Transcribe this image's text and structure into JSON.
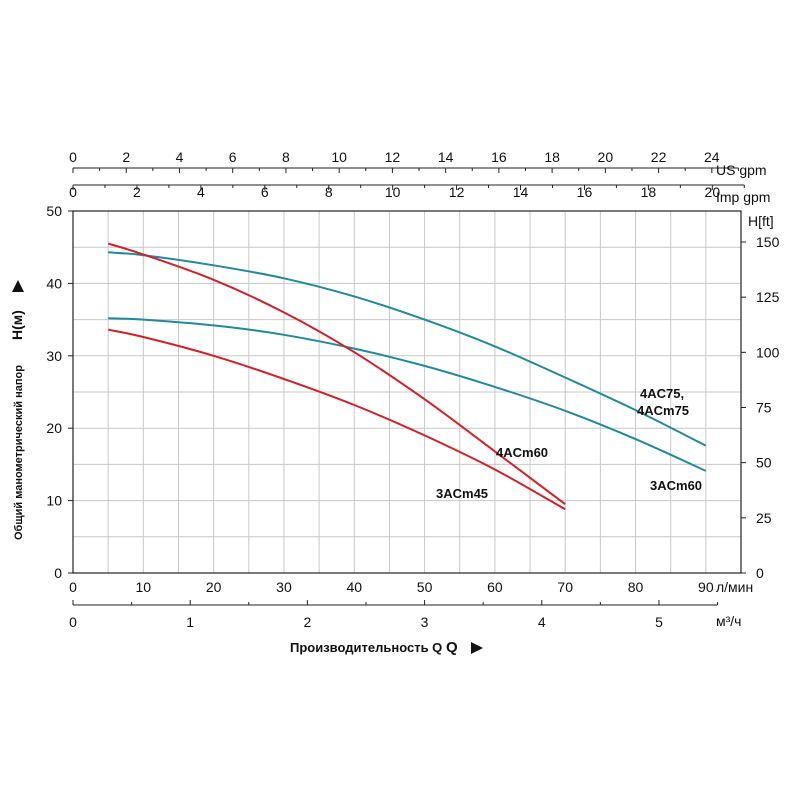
{
  "chart_data": {
    "type": "line",
    "xlabel": "Производительность Q",
    "ylabel": "Общий манометрический напор",
    "ylabel_unit": "H(м)",
    "right_axis_label": "H[ft]",
    "x_axes": {
      "lmin": {
        "unit": "л/мин",
        "ticks": [
          0,
          10,
          20,
          30,
          40,
          50,
          60,
          70,
          80,
          90
        ]
      },
      "m3h": {
        "unit": "м³/ч",
        "ticks": [
          0,
          1,
          2,
          3,
          4,
          5
        ]
      },
      "imp_gpm": {
        "unit": "Imp gpm",
        "ticks": [
          0,
          2,
          4,
          6,
          8,
          10,
          12,
          14,
          16,
          18,
          20
        ]
      },
      "us_gpm": {
        "unit": "US gpm",
        "ticks": [
          0,
          2,
          4,
          6,
          8,
          10,
          12,
          14,
          16,
          18,
          20,
          22,
          24
        ]
      }
    },
    "y_axes": {
      "m": {
        "range": [
          0,
          50
        ],
        "ticks": [
          0,
          10,
          20,
          30,
          40,
          50
        ]
      },
      "ft": {
        "ticks": [
          0,
          25,
          50,
          75,
          100,
          125,
          150
        ]
      }
    },
    "xlim": [
      0,
      95
    ],
    "ylim": [
      0,
      50
    ],
    "series": [
      {
        "name": "4AC75, 4ACm75",
        "color": "#1f8aa0",
        "x": [
          5,
          10,
          20,
          30,
          40,
          50,
          60,
          70,
          80,
          90
        ],
        "y": [
          44.3,
          43.9,
          42.5,
          40.7,
          38.2,
          35.0,
          31.3,
          27.0,
          22.5,
          17.6
        ]
      },
      {
        "name": "3ACm60",
        "color": "#1f8aa0",
        "x": [
          5,
          10,
          20,
          30,
          40,
          50,
          60,
          70,
          80,
          90
        ],
        "y": [
          35.2,
          35.0,
          34.2,
          32.9,
          31.0,
          28.6,
          25.7,
          22.4,
          18.5,
          14.1
        ]
      },
      {
        "name": "4ACm60",
        "color": "#d42027",
        "x": [
          5,
          10,
          20,
          30,
          40,
          50,
          60,
          70
        ],
        "y": [
          45.5,
          44.0,
          40.5,
          36.0,
          30.5,
          24.0,
          16.8,
          9.5
        ]
      },
      {
        "name": "3ACm45",
        "color": "#d42027",
        "x": [
          5,
          10,
          20,
          30,
          40,
          50,
          60,
          70
        ],
        "y": [
          33.6,
          32.6,
          30.0,
          26.8,
          23.2,
          19.0,
          14.3,
          8.8
        ]
      }
    ],
    "labels": [
      "4AC75,",
      "4ACm75",
      "3ACm60",
      "4ACm60",
      "3ACm45"
    ],
    "grid": true
  }
}
